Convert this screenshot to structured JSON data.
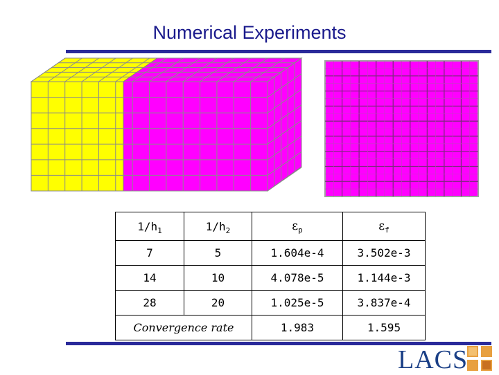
{
  "title": "Numerical Experiments",
  "table": {
    "headers": [
      {
        "base": "1/h",
        "sub": "1"
      },
      {
        "base": "1/h",
        "sub": "2"
      },
      {
        "base": "ε",
        "sub": "p"
      },
      {
        "base": "ε",
        "sub": "f"
      }
    ],
    "rows": [
      [
        "7",
        "5",
        "1.604e-4",
        "3.502e-3"
      ],
      [
        "14",
        "10",
        "4.078e-5",
        "1.144e-3"
      ],
      [
        "28",
        "20",
        "1.025e-5",
        "3.837e-4"
      ]
    ],
    "rate_label": "Convergence rate",
    "rate_values": [
      "1.983",
      "1.595"
    ]
  },
  "logo": {
    "text": "LACSI"
  },
  "colors": {
    "yellow": "#ffff00",
    "magenta": "#ff00ff",
    "rule": "#2a2a9a",
    "title": "#1a1a8c",
    "logo": "#1a3f86"
  }
}
